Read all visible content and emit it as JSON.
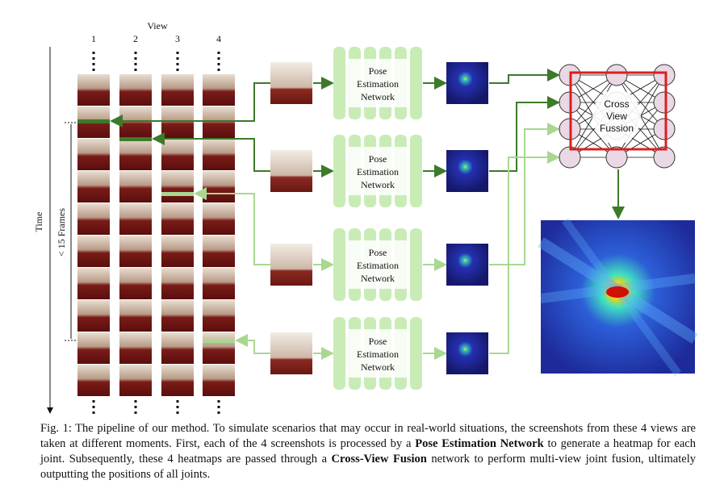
{
  "header": {
    "view_label": "View",
    "view_numbers": [
      "1",
      "2",
      "3",
      "4"
    ],
    "time_label": "Time",
    "frames_label": "< 15 Frames"
  },
  "pose_networks": [
    [
      "Pose",
      "Estimation",
      "Network"
    ],
    [
      "Pose",
      "Estimation",
      "Network"
    ],
    [
      "Pose",
      "Estimation",
      "Network"
    ],
    [
      "Pose",
      "Estimation",
      "Network"
    ]
  ],
  "fusion_label": [
    "Cross",
    "View",
    "Fussion"
  ],
  "caption": [
    {
      "text": "Fig. 1: The pipeline of our method. To simulate scenarios that may occur in real-world situations, the screenshots from these 4 views are taken at different moments. First, each of the 4 screenshots is processed by a ",
      "bold": false
    },
    {
      "text": "Pose Estimation Network",
      "bold": true
    },
    {
      "text": " to generate a heatmap for each joint. Subsequently, these 4 heatmaps are passed through a ",
      "bold": false
    },
    {
      "text": "Cross-View Fusion",
      "bold": true
    },
    {
      "text": " network to perform multi-view joint fusion, ultimately outputting the positions of all joints.",
      "bold": false
    }
  ]
}
